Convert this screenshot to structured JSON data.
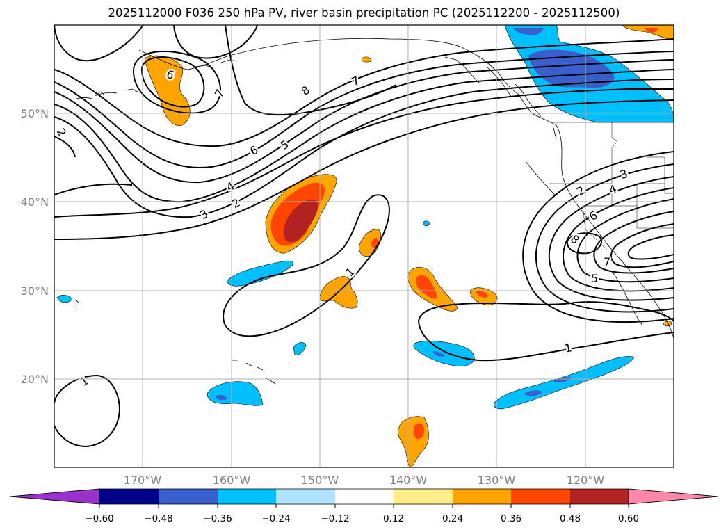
{
  "title": "2025112000 F036 250 hPa PV, river basin precipitation PC (2025112200 - 2025112500)",
  "map": {
    "lon_range": [
      -180,
      -110
    ],
    "lat_range": [
      10,
      60
    ],
    "lat_labels": [
      "50°N",
      "40°N",
      "30°N",
      "20°N"
    ],
    "lon_labels": [
      "170°W",
      "160°W",
      "150°W",
      "140°W",
      "130°W",
      "120°W"
    ]
  },
  "contour_labels": [
    "2",
    "6",
    "7",
    "8",
    "7",
    "6",
    "5",
    "4",
    "3",
    "2",
    "1",
    "1",
    "1",
    "2",
    "3",
    "4",
    "6",
    "8",
    "7",
    "5"
  ],
  "colorbar": {
    "ticks": [
      "−0.60",
      "−0.48",
      "−0.36",
      "−0.24",
      "−0.12",
      "0.12",
      "0.24",
      "0.36",
      "0.48",
      "0.60"
    ],
    "colors": [
      "#9932cc",
      "#00008b",
      "#3a5fcd",
      "#00bfff",
      "#b0e2ff",
      "#ffffff",
      "#ffec8b",
      "#ffa500",
      "#ff4500",
      "#b22222",
      "#ff88aa"
    ]
  }
}
